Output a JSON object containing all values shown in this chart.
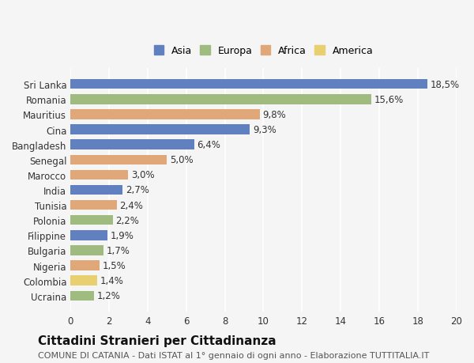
{
  "countries": [
    "Sri Lanka",
    "Romania",
    "Mauritius",
    "Cina",
    "Bangladesh",
    "Senegal",
    "Marocco",
    "India",
    "Tunisia",
    "Polonia",
    "Filippine",
    "Bulgaria",
    "Nigeria",
    "Colombia",
    "Ucraina"
  ],
  "values": [
    18.5,
    15.6,
    9.8,
    9.3,
    6.4,
    5.0,
    3.0,
    2.7,
    2.4,
    2.2,
    1.9,
    1.7,
    1.5,
    1.4,
    1.2
  ],
  "continents": [
    "Asia",
    "Europa",
    "Africa",
    "Asia",
    "Asia",
    "Africa",
    "Africa",
    "Asia",
    "Africa",
    "Europa",
    "Asia",
    "Europa",
    "Africa",
    "America",
    "Europa"
  ],
  "continent_colors": {
    "Asia": "#6080c0",
    "Europa": "#a0bb80",
    "Africa": "#e0a878",
    "America": "#e8d070"
  },
  "legend_labels": [
    "Asia",
    "Europa",
    "Africa",
    "America"
  ],
  "legend_colors": [
    "#6080c0",
    "#a0bb80",
    "#e0a878",
    "#e8d070"
  ],
  "title": "Cittadini Stranieri per Cittadinanza",
  "subtitle": "COMUNE DI CATANIA - Dati ISTAT al 1° gennaio di ogni anno - Elaborazione TUTTITALIA.IT",
  "xlim": [
    0,
    20
  ],
  "xticks": [
    0,
    2,
    4,
    6,
    8,
    10,
    12,
    14,
    16,
    18,
    20
  ],
  "bg_color": "#f5f5f5",
  "grid_color": "#ffffff",
  "bar_height": 0.65,
  "label_fontsize": 8.5,
  "tick_fontsize": 8.5,
  "title_fontsize": 11,
  "subtitle_fontsize": 8
}
